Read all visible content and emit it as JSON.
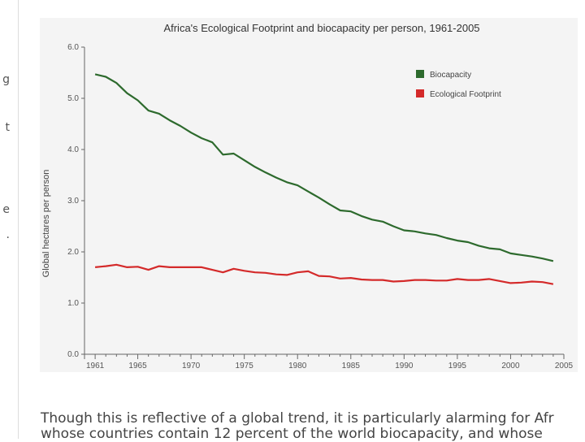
{
  "left_fragments": [
    "g",
    "t",
    "e",
    "."
  ],
  "body_text": {
    "line1": "Though this is reflective of a global trend, it is particularly alarming for Afr",
    "line2": "whose countries contain 12 percent of the world biocapacity, and whose"
  },
  "chart_data": {
    "type": "line",
    "title": "Africa's Ecological Footprint and biocapacity per person, 1961-2005",
    "xlabel": "",
    "ylabel": "Global hectares per person",
    "xlim": [
      1960,
      2005
    ],
    "ylim": [
      0,
      6
    ],
    "x_ticks": [
      1961,
      1965,
      1970,
      1975,
      1980,
      1985,
      1990,
      1995,
      2000,
      2005
    ],
    "y_ticks": [
      0,
      1,
      2,
      3,
      4,
      5,
      6
    ],
    "y_tick_labels": [
      "0.0",
      "1.0",
      "2.0",
      "3.0",
      "4.0",
      "5.0",
      "6.0"
    ],
    "grid": false,
    "legend_position": "top-right",
    "x": [
      1961,
      1962,
      1963,
      1964,
      1965,
      1966,
      1967,
      1968,
      1969,
      1970,
      1971,
      1972,
      1973,
      1974,
      1975,
      1976,
      1977,
      1978,
      1979,
      1980,
      1981,
      1982,
      1983,
      1984,
      1985,
      1986,
      1987,
      1988,
      1989,
      1990,
      1991,
      1992,
      1993,
      1994,
      1995,
      1996,
      1997,
      1998,
      1999,
      2000,
      2001,
      2002,
      2003,
      2004
    ],
    "series": [
      {
        "name": "Biocapacity",
        "color": "#2d6a2d",
        "values": [
          5.47,
          5.42,
          5.3,
          5.1,
          4.96,
          4.76,
          4.7,
          4.57,
          4.46,
          4.33,
          4.22,
          4.14,
          3.9,
          3.92,
          3.79,
          3.66,
          3.55,
          3.45,
          3.36,
          3.3,
          3.18,
          3.06,
          2.93,
          2.81,
          2.79,
          2.7,
          2.63,
          2.59,
          2.5,
          2.42,
          2.4,
          2.36,
          2.33,
          2.27,
          2.22,
          2.19,
          2.12,
          2.07,
          2.05,
          1.97,
          1.94,
          1.91,
          1.87,
          1.82
        ]
      },
      {
        "name": "Ecological Footprint",
        "color": "#d42a2a",
        "values": [
          1.7,
          1.72,
          1.75,
          1.7,
          1.71,
          1.65,
          1.72,
          1.7,
          1.7,
          1.7,
          1.7,
          1.65,
          1.6,
          1.67,
          1.63,
          1.6,
          1.59,
          1.56,
          1.55,
          1.6,
          1.62,
          1.53,
          1.52,
          1.48,
          1.49,
          1.46,
          1.45,
          1.45,
          1.42,
          1.43,
          1.45,
          1.45,
          1.44,
          1.44,
          1.47,
          1.45,
          1.45,
          1.47,
          1.43,
          1.39,
          1.4,
          1.42,
          1.41,
          1.37
        ]
      }
    ]
  }
}
